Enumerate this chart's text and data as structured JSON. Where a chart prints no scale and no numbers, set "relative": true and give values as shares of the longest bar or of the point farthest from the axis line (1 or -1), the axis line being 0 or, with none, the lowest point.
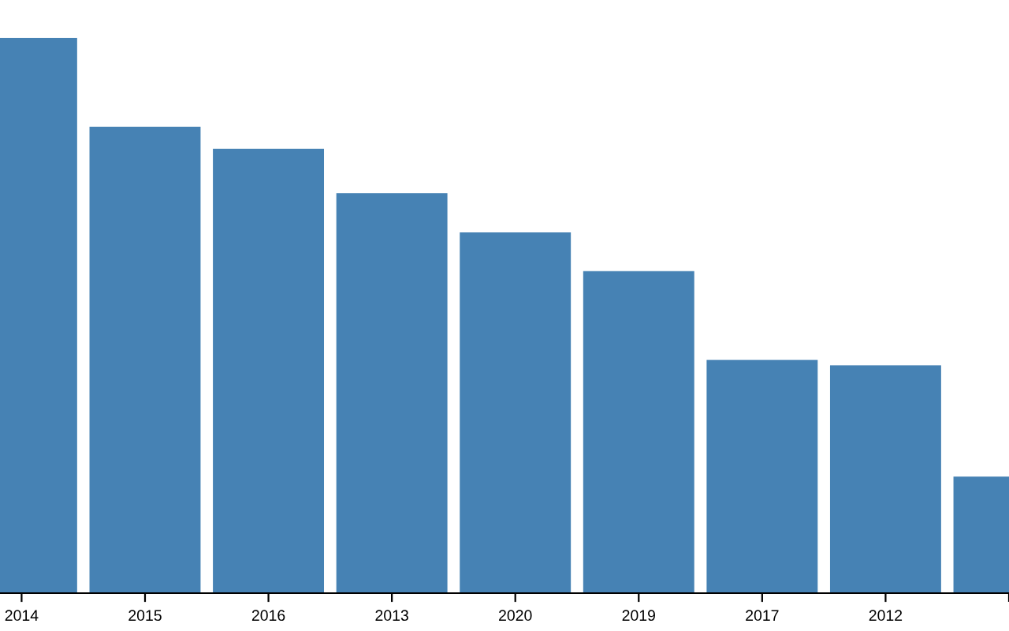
{
  "chart_data": {
    "type": "bar",
    "relative": true,
    "categories": [
      "2014",
      "2015",
      "2016",
      "2013",
      "2020",
      "2019",
      "2017",
      "2012",
      null
    ],
    "values": [
      1,
      0.84,
      0.8,
      0.72,
      0.65,
      0.58,
      0.42,
      0.41,
      0.21
    ],
    "color": "#4682b4",
    "grid": false,
    "legend": false
  }
}
